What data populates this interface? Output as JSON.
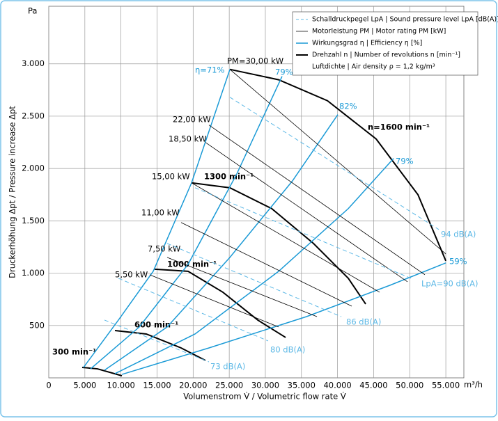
{
  "chart_data": {
    "type": "line",
    "y_unit": "Pa",
    "x_unit": "m³/h",
    "x_label": "Volumenstrom V̇ / Volumetric flow rate V̇",
    "y_label": "Druckerhöhung Δpt / Pressure increase Δpt",
    "xlim": [
      0,
      57500
    ],
    "ylim": [
      0,
      3550
    ],
    "grid": true,
    "xticks": [
      0,
      {
        "value": 5000,
        "label": "5.000"
      },
      {
        "value": 10000,
        "label": "10.000"
      },
      {
        "value": 15000,
        "label": "15.000"
      },
      {
        "value": 20000,
        "label": "20.000"
      },
      {
        "value": 25000,
        "label": "25.000"
      },
      {
        "value": 30000,
        "label": "30.000"
      },
      {
        "value": 35000,
        "label": "35.000"
      },
      {
        "value": 40000,
        "label": "40.000"
      },
      {
        "value": 45000,
        "label": "45.000"
      },
      {
        "value": 50000,
        "label": "50.000"
      },
      {
        "value": 55000,
        "label": "55.000"
      }
    ],
    "yticks": [
      500,
      {
        "value": 1000,
        "label": "1.000"
      },
      {
        "value": 1500,
        "label": "1.500"
      },
      {
        "value": 2000,
        "label": "2.000"
      },
      {
        "value": 2500,
        "label": "2.500"
      },
      {
        "value": 3000,
        "label": "3.000"
      }
    ],
    "legend": [
      {
        "label": "Schalldruckpegel LpA | Sound pressure level LpA [dB(A)]",
        "color": "#5cb8e6",
        "dash": true,
        "width": 1
      },
      {
        "label": "Motorleistung PM | Motor rating PM [kW]",
        "color": "#000000",
        "dash": false,
        "width": 0.8
      },
      {
        "label": "Wirkungsgrad η | Efficiency η [%]",
        "color": "#1a9ad6",
        "dash": false,
        "width": 1.5
      },
      {
        "label": "Drehzahl n | Number of revolutions n [min⁻¹]",
        "color": "#000000",
        "dash": false,
        "width": 2
      },
      {
        "label": "Luftdichte | Air density ρ = 1,2 kg/m³",
        "color": "#ffffff",
        "dash": false,
        "width": 0
      }
    ],
    "series": [
      {
        "name": "n=1600 min⁻¹",
        "color": "#000000",
        "width": 2,
        "dash": false,
        "x": [
          25090,
          31840,
          38600,
          45350,
          51140,
          55000
        ],
        "values": [
          2947,
          2848,
          2648,
          2282,
          1750,
          1118
        ]
      },
      {
        "name": "1300 min⁻¹",
        "color": "#000000",
        "width": 2,
        "dash": false,
        "x": [
          19780,
          25090,
          30880,
          36670,
          41490,
          43900
        ],
        "values": [
          1863,
          1816,
          1617,
          1284,
          951,
          705
        ]
      },
      {
        "name": "1000 min⁻¹",
        "color": "#000000",
        "width": 2,
        "dash": false,
        "x": [
          14670,
          19300,
          24120,
          28950,
          32810
        ],
        "values": [
          1038,
          1018,
          818,
          552,
          386
        ]
      },
      {
        "name": "600 min⁻¹",
        "color": "#000000",
        "width": 2,
        "dash": false,
        "x": [
          9170,
          13510,
          18330,
          21710
        ],
        "values": [
          452,
          419,
          286,
          166
        ]
      },
      {
        "name": "300 min⁻¹",
        "color": "#000000",
        "width": 2,
        "dash": false,
        "x": [
          4630,
          6750,
          10130
        ],
        "values": [
          100,
          86,
          20
        ]
      },
      {
        "name": "η=71%",
        "color": "#1a9ad6",
        "width": 1.5,
        "dash": false,
        "x": [
          4820,
          9650,
          14470,
          19780,
          25090
        ],
        "values": [
          100,
          552,
          1018,
          1863,
          2947
        ]
      },
      {
        "name": "79%",
        "color": "#1a9ad6",
        "width": 1.5,
        "dash": false,
        "x": [
          5790,
          12540,
          19300,
          26050,
          32320
        ],
        "values": [
          86,
          486,
          1085,
          1949,
          2881
        ]
      },
      {
        "name": "82%",
        "color": "#1a9ad6",
        "width": 1.5,
        "dash": false,
        "x": [
          7720,
          16400,
          25090,
          33770,
          40040
        ],
        "values": [
          73,
          486,
          1151,
          1883,
          2515
        ]
      },
      {
        "name": "79%",
        "color": "#1a9ad6",
        "width": 1.5,
        "dash": false,
        "x": [
          9170,
          20260,
          31840,
          41490,
          47760
        ],
        "values": [
          40,
          419,
          1018,
          1617,
          2096
        ]
      },
      {
        "name": "59%",
        "color": "#1a9ad6",
        "width": 1.5,
        "dash": false,
        "x": [
          10130,
          22190,
          35700,
          47280,
          55000
        ],
        "values": [
          33,
          286,
          585,
          885,
          1098
        ]
      },
      {
        "name": "PM=30,00 kW",
        "color": "#000000",
        "width": 0.8,
        "dash": false,
        "x": [
          25090,
          55000
        ],
        "values": [
          2947,
          1184
        ]
      },
      {
        "name": "22,00 kW",
        "color": "#000000",
        "width": 0.8,
        "dash": false,
        "x": [
          22190,
          52100
        ],
        "values": [
          2415,
          985
        ]
      },
      {
        "name": "18,50 kW",
        "color": "#000000",
        "width": 0.8,
        "dash": false,
        "x": [
          21710,
          49690
        ],
        "values": [
          2249,
          918
        ]
      },
      {
        "name": "15,00 kW",
        "color": "#000000",
        "width": 0.8,
        "dash": false,
        "x": [
          19780,
          45830
        ],
        "values": [
          1863,
          818
        ]
      },
      {
        "name": "11,00 kW",
        "color": "#000000",
        "width": 0.8,
        "dash": false,
        "x": [
          18330,
          41970
        ],
        "values": [
          1484,
          685
        ]
      },
      {
        "name": "7,50 kW",
        "color": "#000000",
        "width": 0.8,
        "dash": false,
        "x": [
          16400,
          37150
        ],
        "values": [
          1151,
          585
        ]
      },
      {
        "name": "5,50 kW",
        "color": "#000000",
        "width": 0.8,
        "dash": false,
        "x": [
          13990,
          31840
        ],
        "values": [
          985,
          486
        ]
      },
      {
        "name": "73 dB(A)",
        "color": "#5cb8e6",
        "width": 1,
        "dash": true,
        "x": [
          7720,
          22190
        ],
        "values": [
          552,
          153
        ]
      },
      {
        "name": "80 dB(A)",
        "color": "#5cb8e6",
        "width": 1,
        "dash": true,
        "x": [
          9650,
          30390
        ],
        "values": [
          951,
          353
        ]
      },
      {
        "name": "86 dB(A)",
        "color": "#5cb8e6",
        "width": 1,
        "dash": true,
        "x": [
          16400,
          40520
        ],
        "values": [
          1284,
          585
        ]
      },
      {
        "name": "LpA=90 dB(A)",
        "color": "#5cb8e6",
        "width": 1,
        "dash": true,
        "x": [
          20260,
          50170
        ],
        "values": [
          1816,
          951
        ]
      },
      {
        "name": "94 dB(A)",
        "color": "#5cb8e6",
        "width": 1,
        "dash": true,
        "x": [
          25090,
          54030
        ],
        "values": [
          2681,
          1417
        ]
      }
    ]
  }
}
